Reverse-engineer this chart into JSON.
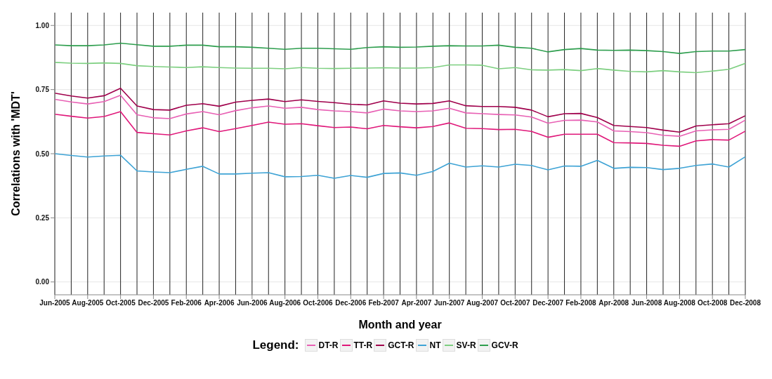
{
  "chart_data": {
    "type": "line",
    "xlabel": "Month and year",
    "ylabel": "Correlations with 'MDT'",
    "legend_title": "Legend:",
    "legend": "bottom",
    "grid": true,
    "marker": "none",
    "line_style": "solid",
    "x": [
      "2005-06",
      "2005-07",
      "2005-08",
      "2005-09",
      "2005-10",
      "2005-11",
      "2005-12",
      "2006-01",
      "2006-02",
      "2006-03",
      "2006-04",
      "2006-05",
      "2006-06",
      "2006-07",
      "2006-08",
      "2006-09",
      "2006-10",
      "2006-11",
      "2006-12",
      "2007-01",
      "2007-02",
      "2007-03",
      "2007-04",
      "2007-05",
      "2007-06",
      "2007-07",
      "2007-08",
      "2007-09",
      "2007-10",
      "2007-11",
      "2007-12",
      "2008-01",
      "2008-02",
      "2008-03",
      "2008-04",
      "2008-05",
      "2008-06",
      "2008-07",
      "2008-08",
      "2008-09",
      "2008-10",
      "2008-11",
      "2008-12"
    ],
    "xlim": [
      "2005-06",
      "2008-12"
    ],
    "xticks": [
      {
        "value": "2005-06",
        "label": "Jun-2005"
      },
      {
        "value": "2005-08",
        "label": "Aug-2005"
      },
      {
        "value": "2005-10",
        "label": "Oct-2005"
      },
      {
        "value": "2005-12",
        "label": "Dec-2005"
      },
      {
        "value": "2006-02",
        "label": "Feb-2006"
      },
      {
        "value": "2006-04",
        "label": "Apr-2006"
      },
      {
        "value": "2006-06",
        "label": "Jun-2006"
      },
      {
        "value": "2006-08",
        "label": "Aug-2006"
      },
      {
        "value": "2006-10",
        "label": "Oct-2006"
      },
      {
        "value": "2006-12",
        "label": "Dec-2006"
      },
      {
        "value": "2007-02",
        "label": "Feb-2007"
      },
      {
        "value": "2007-04",
        "label": "Apr-2007"
      },
      {
        "value": "2007-06",
        "label": "Jun-2007"
      },
      {
        "value": "2007-08",
        "label": "Aug-2007"
      },
      {
        "value": "2007-10",
        "label": "Oct-2007"
      },
      {
        "value": "2007-12",
        "label": "Dec-2007"
      },
      {
        "value": "2008-02",
        "label": "Feb-2008"
      },
      {
        "value": "2008-04",
        "label": "Apr-2008"
      },
      {
        "value": "2008-06",
        "label": "Jun-2008"
      },
      {
        "value": "2008-08",
        "label": "Aug-2008"
      },
      {
        "value": "2008-10",
        "label": "Oct-2008"
      },
      {
        "value": "2008-12",
        "label": "Dec-2008"
      }
    ],
    "ylim": [
      -0.05,
      1.05
    ],
    "yticks": [
      {
        "value": 0,
        "label": "0.00"
      },
      {
        "value": 0.25,
        "label": "0.25"
      },
      {
        "value": 0.5,
        "label": "0.50"
      },
      {
        "value": 0.75,
        "label": "0.75"
      },
      {
        "value": 1,
        "label": "1.00"
      }
    ],
    "series": [
      {
        "name": "DT-R",
        "color": "#e860b4",
        "values": [
          0.712,
          0.702,
          0.694,
          0.703,
          0.728,
          0.652,
          0.64,
          0.637,
          0.655,
          0.664,
          0.652,
          0.668,
          0.679,
          0.686,
          0.677,
          0.681,
          0.672,
          0.667,
          0.664,
          0.659,
          0.674,
          0.667,
          0.664,
          0.667,
          0.677,
          0.659,
          0.656,
          0.653,
          0.651,
          0.643,
          0.619,
          0.63,
          0.631,
          0.624,
          0.589,
          0.586,
          0.582,
          0.572,
          0.568,
          0.589,
          0.593,
          0.595,
          0.631
        ]
      },
      {
        "name": "TT-R",
        "color": "#e0187a",
        "values": [
          0.654,
          0.646,
          0.639,
          0.645,
          0.664,
          0.583,
          0.578,
          0.573,
          0.589,
          0.601,
          0.586,
          0.598,
          0.61,
          0.623,
          0.615,
          0.617,
          0.609,
          0.602,
          0.604,
          0.597,
          0.61,
          0.605,
          0.601,
          0.606,
          0.62,
          0.599,
          0.598,
          0.594,
          0.595,
          0.587,
          0.564,
          0.576,
          0.576,
          0.576,
          0.543,
          0.542,
          0.54,
          0.533,
          0.529,
          0.55,
          0.555,
          0.553,
          0.588
        ]
      },
      {
        "name": "GCT-R",
        "color": "#a0004c",
        "values": [
          0.736,
          0.725,
          0.717,
          0.726,
          0.755,
          0.686,
          0.672,
          0.67,
          0.689,
          0.695,
          0.685,
          0.701,
          0.708,
          0.713,
          0.703,
          0.71,
          0.704,
          0.699,
          0.693,
          0.69,
          0.706,
          0.697,
          0.694,
          0.696,
          0.706,
          0.687,
          0.684,
          0.684,
          0.681,
          0.67,
          0.644,
          0.656,
          0.657,
          0.641,
          0.61,
          0.606,
          0.602,
          0.592,
          0.584,
          0.608,
          0.613,
          0.617,
          0.648
        ]
      },
      {
        "name": "NT",
        "color": "#3ea3d5",
        "values": [
          0.5,
          0.493,
          0.487,
          0.491,
          0.494,
          0.433,
          0.429,
          0.426,
          0.439,
          0.451,
          0.421,
          0.421,
          0.424,
          0.426,
          0.41,
          0.411,
          0.416,
          0.404,
          0.415,
          0.408,
          0.423,
          0.425,
          0.416,
          0.431,
          0.463,
          0.448,
          0.453,
          0.448,
          0.459,
          0.454,
          0.437,
          0.452,
          0.451,
          0.474,
          0.443,
          0.447,
          0.446,
          0.438,
          0.443,
          0.454,
          0.46,
          0.448,
          0.488
        ]
      },
      {
        "name": "SV-R",
        "color": "#7dcf80",
        "values": [
          0.856,
          0.853,
          0.852,
          0.854,
          0.852,
          0.843,
          0.84,
          0.838,
          0.836,
          0.839,
          0.836,
          0.834,
          0.833,
          0.833,
          0.831,
          0.836,
          0.833,
          0.832,
          0.833,
          0.834,
          0.835,
          0.834,
          0.834,
          0.836,
          0.846,
          0.846,
          0.845,
          0.831,
          0.836,
          0.827,
          0.826,
          0.828,
          0.824,
          0.832,
          0.826,
          0.821,
          0.819,
          0.824,
          0.819,
          0.816,
          0.822,
          0.829,
          0.852
        ]
      },
      {
        "name": "GCV-R",
        "color": "#2e9e4e",
        "values": [
          0.924,
          0.921,
          0.921,
          0.924,
          0.931,
          0.925,
          0.919,
          0.919,
          0.923,
          0.923,
          0.917,
          0.917,
          0.915,
          0.911,
          0.907,
          0.911,
          0.911,
          0.909,
          0.907,
          0.914,
          0.917,
          0.915,
          0.916,
          0.919,
          0.921,
          0.92,
          0.92,
          0.923,
          0.915,
          0.911,
          0.897,
          0.906,
          0.91,
          0.904,
          0.903,
          0.904,
          0.902,
          0.898,
          0.891,
          0.898,
          0.9,
          0.9,
          0.906
        ]
      }
    ]
  }
}
